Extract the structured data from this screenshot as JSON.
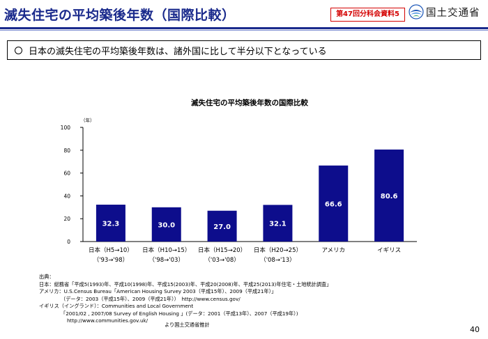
{
  "header": {
    "title": "滅失住宅の平均築後年数（国際比較）",
    "session_badge": "第47回分科会資料5",
    "ministry_name": "国土交通省",
    "logo_icon": "mlit-logo-icon"
  },
  "summary": {
    "text": "日本の滅失住宅の平均築後年数は、諸外国に比して半分以下となっている"
  },
  "chart_data": {
    "type": "bar",
    "title": "滅失住宅の平均築後年数の国際比較",
    "ylabel": "（年）",
    "xlabel": "",
    "ylim": [
      0,
      100
    ],
    "yticks": [
      0,
      20,
      40,
      60,
      80,
      100
    ],
    "grid": false,
    "legend": "none",
    "bar_color": "#0d0d8c",
    "categories": [
      {
        "line1": "日本（H5→10）",
        "line2": "（'93→'98）"
      },
      {
        "line1": "日本（H10→15）",
        "line2": "（'98→'03）"
      },
      {
        "line1": "日本（H15→20）",
        "line2": "（'03→'08）"
      },
      {
        "line1": "日本（H20→25）",
        "line2": "（'08→'13）"
      },
      {
        "line1": "アメリカ",
        "line2": ""
      },
      {
        "line1": "イギリス",
        "line2": ""
      }
    ],
    "values": [
      32.3,
      30.0,
      27.0,
      32.1,
      66.6,
      80.6
    ],
    "value_labels": [
      "32.3",
      "30.0",
      "27.0",
      "32.1",
      "66.6",
      "80.6"
    ]
  },
  "sources": {
    "heading": "出典：",
    "lines": [
      "日本：総務省「平成5(1993)年、平成10(1998)年、平成15(2003)年、平成20(2008)年、平成25(2013)年住宅・土地統計調査」",
      "アメリカ：U.S.Census Bureau「American Housing Survey 2003（平成15年）、2009（平成21年）」",
      "（データ：2003（平成15年）、2009（平成21年））　http://www.census.gov/",
      "イギリス（イングランド）：Communities and Local Government",
      "「2001/02 , 2007/08 Survey of English Housing 」(データ：2001（平成13年）、2007（平成19年）)",
      "http://www.communities.gov.uk/"
    ],
    "estimate_note": "より国土交通省推計"
  },
  "footer": {
    "page_number": "40"
  }
}
